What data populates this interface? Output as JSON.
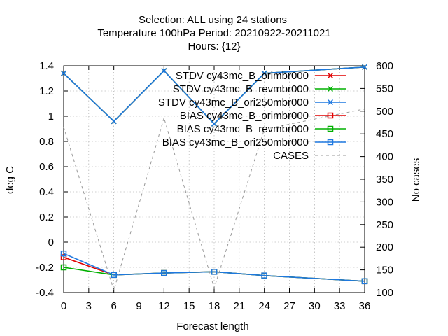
{
  "chart_data": {
    "type": "line",
    "title_lines": [
      "Selection: ALL using    24 stations",
      "Temperature 100hPa   Period: 20210922-20211021",
      "Hours: {12}"
    ],
    "xlabel": "Forecast length",
    "ylabel": "deg C",
    "y2label": "No cases",
    "xlim": [
      0,
      36
    ],
    "ylim": [
      -0.4,
      1.4
    ],
    "y2lim": [
      100,
      600
    ],
    "x_ticks": [
      0,
      3,
      6,
      9,
      12,
      15,
      18,
      21,
      24,
      27,
      30,
      33,
      36
    ],
    "y_ticks": [
      -0.4,
      -0.2,
      0,
      0.2,
      0.4,
      0.6,
      0.8,
      1,
      1.2,
      1.4
    ],
    "y_tick_labels": [
      "-0.4",
      "-0.2",
      "0",
      "0.2",
      "0.4",
      "0.6",
      "0.8",
      "1",
      "1.2",
      "1.4"
    ],
    "y2_ticks": [
      100,
      150,
      200,
      250,
      300,
      350,
      400,
      450,
      500,
      550,
      600
    ],
    "grid": true,
    "legend_position": "top-right inside",
    "series": [
      {
        "name": "STDV cy43mc_B_orimbr000",
        "color": "#e00000",
        "marker": "x",
        "axis": "y",
        "x": [
          0,
          6,
          12,
          18,
          24,
          36
        ],
        "values": [
          1.34,
          0.96,
          1.36,
          0.94,
          1.34,
          1.39
        ]
      },
      {
        "name": "STDV cy43mc_B_revmbr000",
        "color": "#00b000",
        "marker": "x",
        "axis": "y",
        "x": [
          0,
          6,
          12,
          18,
          24,
          36
        ],
        "values": [
          1.34,
          0.96,
          1.36,
          0.94,
          1.34,
          1.39
        ]
      },
      {
        "name": "STDV cy43mc_B_ori250mbr000",
        "color": "#1e78e0",
        "marker": "x",
        "axis": "y",
        "x": [
          0,
          6,
          12,
          18,
          24,
          36
        ],
        "values": [
          1.34,
          0.96,
          1.36,
          0.94,
          1.34,
          1.39
        ]
      },
      {
        "name": "BIAS cy43mc_B_orimbr000",
        "color": "#e00000",
        "marker": "square",
        "axis": "y",
        "x": [
          0,
          6,
          12,
          18,
          24,
          36
        ],
        "values": [
          -0.12,
          -0.26,
          -0.245,
          -0.235,
          -0.265,
          -0.31
        ]
      },
      {
        "name": "BIAS cy43mc_B_revmbr000",
        "color": "#00b000",
        "marker": "square",
        "axis": "y",
        "x": [
          0,
          6,
          12,
          18,
          24,
          36
        ],
        "values": [
          -0.2,
          -0.26,
          -0.245,
          -0.235,
          -0.265,
          -0.31
        ]
      },
      {
        "name": "BIAS cy43mc_B_ori250mbr000",
        "color": "#1e78e0",
        "marker": "square",
        "axis": "y",
        "x": [
          0,
          6,
          12,
          18,
          24,
          36
        ],
        "values": [
          -0.09,
          -0.26,
          -0.245,
          -0.235,
          -0.265,
          -0.31
        ]
      },
      {
        "name": "CASES",
        "color": "#999999",
        "marker": "none",
        "dashed": true,
        "axis": "y2",
        "x": [
          0,
          6,
          12,
          18,
          24,
          36
        ],
        "values": [
          465,
          105,
          485,
          110,
          460,
          505
        ]
      }
    ]
  }
}
